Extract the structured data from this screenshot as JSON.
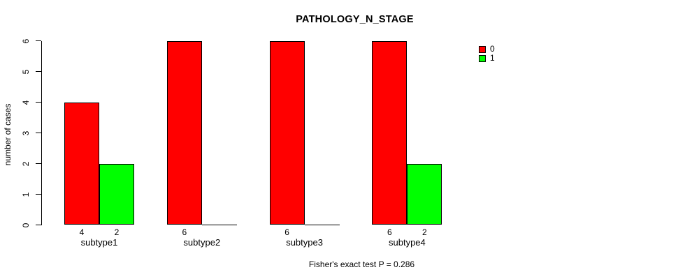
{
  "title": "PATHOLOGY_N_STAGE",
  "footer": "Fisher's exact test P = 0.286",
  "chart_data": {
    "type": "bar",
    "grouped": true,
    "title": "PATHOLOGY_N_STAGE",
    "categories": [
      "subtype1",
      "subtype2",
      "subtype3",
      "subtype4"
    ],
    "series": [
      {
        "name": "0",
        "color": "#ff0000",
        "values": [
          4,
          6,
          6,
          6
        ]
      },
      {
        "name": "1",
        "color": "#00ff00",
        "values": [
          2,
          0,
          0,
          2
        ]
      }
    ],
    "bar_labels": [
      [
        "4",
        "2"
      ],
      [
        "6",
        ""
      ],
      [
        "6",
        ""
      ],
      [
        "6",
        "2"
      ]
    ],
    "xlabel": "",
    "ylabel": "number of cases",
    "ylim": [
      0,
      6
    ],
    "yticks": [
      "0",
      "1",
      "2",
      "3",
      "4",
      "5",
      "6"
    ],
    "grid": false,
    "legend": {
      "position": "topright",
      "entries": [
        {
          "label": "0",
          "color": "#ff0000"
        },
        {
          "label": "1",
          "color": "#00ff00"
        }
      ]
    },
    "annotation": "Fisher's exact test P = 0.286",
    "axis_color": "#000000",
    "background": "#ffffff"
  }
}
